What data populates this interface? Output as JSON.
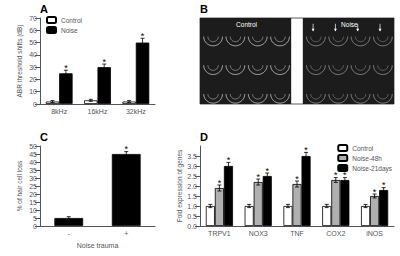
{
  "chart_data": [
    {
      "type": "bar",
      "title": "A",
      "categories": [
        "8kHz",
        "16kHz",
        "32kHz"
      ],
      "series": [
        {
          "name": "Control",
          "color": "white",
          "values": [
            2,
            3,
            2
          ],
          "errors": [
            0.8,
            0.8,
            0.8
          ]
        },
        {
          "name": "Noise",
          "color": "black",
          "values": [
            25,
            30,
            50
          ],
          "errors": [
            2.5,
            2.5,
            3.5
          ]
        }
      ],
      "ylabel": "ABR threshold shifts (dB)",
      "ylim": [
        0,
        70
      ],
      "yticks": [
        0,
        10,
        20,
        30,
        40,
        50,
        60,
        70
      ],
      "legend": "upper left",
      "annotations": [
        {
          "text": "*",
          "series": "Noise",
          "category": "8kHz"
        },
        {
          "text": "*",
          "series": "Noise",
          "category": "16kHz"
        },
        {
          "text": "*",
          "series": "Noise",
          "category": "32kHz"
        }
      ]
    },
    {
      "type": "schematic",
      "title": "B",
      "annotations": [
        "Control",
        "Noise"
      ]
    },
    {
      "type": "bar",
      "title": "C",
      "categories": [
        "-",
        "+"
      ],
      "values": [
        5,
        45
      ],
      "errors": [
        0.8,
        1.5
      ],
      "color": "black",
      "ylabel": "% of hair cell loss",
      "xlabel": "Noise trauma",
      "ylim": [
        0,
        50
      ],
      "yticks": [
        0,
        5,
        10,
        15,
        20,
        25,
        30,
        35,
        40,
        45,
        50
      ],
      "annotations": [
        {
          "text": "*",
          "category": "+"
        }
      ]
    },
    {
      "type": "bar",
      "title": "D",
      "categories": [
        "TRPV1",
        "NOX3",
        "TNF",
        "COX2",
        "iNOS"
      ],
      "series": [
        {
          "name": "Control",
          "color": "white",
          "values": [
            1.0,
            1.0,
            1.0,
            1.0,
            1.0
          ],
          "errors": [
            0.08,
            0.08,
            0.08,
            0.08,
            0.08
          ]
        },
        {
          "name": "Noise-48h",
          "color": "#b0b0b0",
          "values": [
            1.9,
            2.2,
            2.1,
            2.3,
            1.5
          ],
          "errors": [
            0.15,
            0.15,
            0.15,
            0.12,
            0.1
          ]
        },
        {
          "name": "Noise-21days",
          "color": "black",
          "values": [
            3.0,
            2.5,
            3.5,
            2.3,
            1.8
          ],
          "errors": [
            0.18,
            0.15,
            0.18,
            0.12,
            0.12
          ]
        }
      ],
      "ylabel": "Fold expression of genes",
      "ylim": [
        0,
        4
      ],
      "yticks": [
        {
          "value": 0,
          "label": "0.0"
        },
        0.5,
        {
          "value": 1.0,
          "label": "1.0"
        },
        1.5,
        {
          "value": 2.0,
          "label": "2.0"
        },
        2.5,
        {
          "value": 3.0,
          "label": "3.0"
        },
        3.5
      ],
      "legend": "upper right",
      "annotations": [
        {
          "text": "*",
          "series": "Noise-48h",
          "category": "TRPV1"
        },
        {
          "text": "*",
          "series": "Noise-48h",
          "category": "NOX3"
        },
        {
          "text": "*",
          "series": "Noise-48h",
          "category": "TNF"
        },
        {
          "text": "*",
          "series": "Noise-48h",
          "category": "COX2"
        },
        {
          "text": "*",
          "series": "Noise-48h",
          "category": "iNOS"
        },
        {
          "text": "*",
          "series": "Noise-21days",
          "category": "TRPV1"
        },
        {
          "text": "*",
          "series": "Noise-21days",
          "category": "NOX3"
        },
        {
          "text": "*",
          "series": "Noise-21days",
          "category": "TNF"
        },
        {
          "text": "*",
          "series": "Noise-21days",
          "category": "COX2"
        },
        {
          "text": "*",
          "series": "Noise-21days",
          "category": "iNOS"
        }
      ]
    }
  ]
}
